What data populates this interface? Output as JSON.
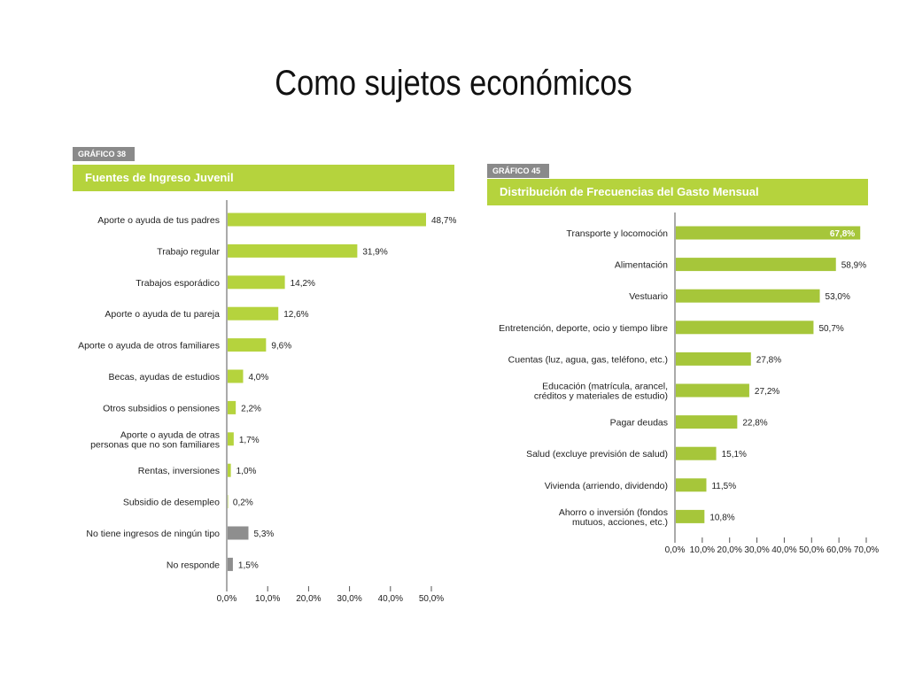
{
  "slide": {
    "title": "Como sujetos económicos"
  },
  "colors": {
    "bar": "#b5d33d",
    "bar_alt": "#8e8e8e",
    "banner": "#b5d33d",
    "tag_bg": "#8a8a8a",
    "text": "#222222"
  },
  "chart_data": [
    {
      "type": "bar",
      "orientation": "horizontal",
      "tag": "GRÁFICO 38",
      "title": "Fuentes de Ingreso Juvenil",
      "categories": [
        "Aporte o ayuda de tus padres",
        "Trabajo regular",
        "Trabajos esporádico",
        "Aporte o ayuda de tu pareja",
        "Aporte o ayuda de otros familiares",
        "Becas, ayudas de estudios",
        "Otros subsidios o pensiones",
        "Aporte o ayuda de otras personas que no son familiares",
        "Rentas, inversiones",
        "Subsidio de desempleo",
        "No tiene ingresos de ningún tipo",
        "No responde"
      ],
      "values": [
        48.7,
        31.9,
        14.2,
        12.6,
        9.6,
        4.0,
        2.2,
        1.7,
        1.0,
        0.2,
        5.3,
        1.5
      ],
      "value_labels": [
        "48,7%",
        "31,9%",
        "14,2%",
        "12,6%",
        "9,6%",
        "4,0%",
        "2,2%",
        "1,7%",
        "1,0%",
        "0,2%",
        "5,3%",
        "1,5%"
      ],
      "bar_colors": [
        "#b5d33d",
        "#b5d33d",
        "#b5d33d",
        "#b5d33d",
        "#b5d33d",
        "#b5d33d",
        "#b5d33d",
        "#b5d33d",
        "#b5d33d",
        "#b5d33d",
        "#8e8e8e",
        "#8e8e8e"
      ],
      "xlim": [
        0,
        50
      ],
      "ticks": [
        0,
        10,
        20,
        30,
        40,
        50
      ],
      "tick_labels": [
        "0,0%",
        "10,0%",
        "20,0%",
        "30,0%",
        "40,0%",
        "50,0%"
      ],
      "grid": false
    },
    {
      "type": "bar",
      "orientation": "horizontal",
      "tag": "GRÁFICO 45",
      "title": "Distribución de Frecuencias del Gasto Mensual",
      "categories": [
        "Transporte y locomoción",
        "Alimentación",
        "Vestuario",
        "Entretención, deporte, ocio y tiempo libre",
        "Cuentas (luz, agua, gas, teléfono, etc.)",
        "Educación (matrícula, arancel, créditos y materiales de estudio)",
        "Pagar deudas",
        "Salud (excluye previsión de salud)",
        "Vivienda (arriendo, dividendo)",
        "Ahorro o inversión (fondos mutuos, acciones, etc.)"
      ],
      "values": [
        67.8,
        58.9,
        53.0,
        50.7,
        27.8,
        27.2,
        22.8,
        15.1,
        11.5,
        10.8
      ],
      "value_labels": [
        "67,8%",
        "58,9%",
        "53,0%",
        "50,7%",
        "27,8%",
        "27,2%",
        "22,8%",
        "15,1%",
        "11,5%",
        "10,8%"
      ],
      "bar_colors": [
        "#a6c63a",
        "#a6c63a",
        "#a6c63a",
        "#a6c63a",
        "#a6c63a",
        "#a6c63a",
        "#a6c63a",
        "#a6c63a",
        "#a6c63a",
        "#a6c63a"
      ],
      "xlim": [
        0,
        70
      ],
      "ticks": [
        0,
        10,
        20,
        30,
        40,
        50,
        60,
        70
      ],
      "tick_labels": [
        "0,0%",
        "10,0%",
        "20,0%",
        "30,0%",
        "40,0%",
        "50,0%",
        "60,0%",
        "70,0%"
      ],
      "grid": false
    }
  ]
}
